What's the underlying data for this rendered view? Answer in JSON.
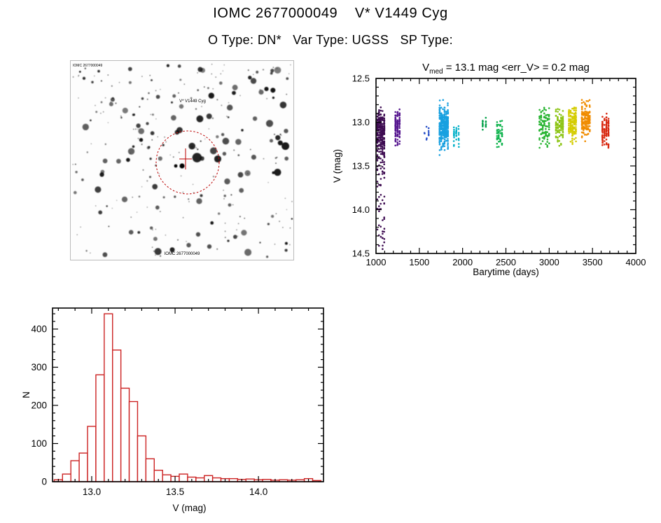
{
  "header": {
    "title": "IOMC 2677000049    V* V1449 Cyg",
    "subtitle": "O Type: DN*   Var Type: UGSS   SP Type:"
  },
  "finder": {
    "top_label": "V* V1449 Cyg",
    "corner_label": "IOMC 2677000049",
    "bottom_label": "IOMC 2677000049",
    "marker_color": "#bb0000",
    "bottom_label_color": "#4444bb",
    "seed": 1337,
    "star_count": 290
  },
  "chart_data": [
    {
      "id": "lightcurve",
      "type": "scatter",
      "title": {
        "prefix": "V",
        "sub": "med",
        "rest": " = 13.1 mag <err_V> = 0.2 mag"
      },
      "xlabel": "Barytime (days)",
      "ylabel": "V (mag)",
      "xlim": [
        1000,
        4000
      ],
      "ylim": [
        12.5,
        14.5
      ],
      "y_inverted": true,
      "grid": false,
      "xticks": [
        "1000",
        "1500",
        "2000",
        "2500",
        "3000",
        "3500",
        "4000"
      ],
      "yticks": [
        "12.5",
        "13.0",
        "13.5",
        "14.0",
        "14.5"
      ],
      "x_minor_step": 100,
      "y_minor_step": 0.1,
      "clusters": [
        {
          "x0": 1015,
          "x1": 1095,
          "v_med": 13.12,
          "v_sigma": 0.14,
          "v_min": 12.82,
          "v_max": 13.55,
          "n": 240,
          "color": "#3c0a50",
          "tail": {
            "n": 60,
            "v_min": 13.4,
            "v_max": 14.45
          }
        },
        {
          "x0": 1225,
          "x1": 1272,
          "v_med": 13.04,
          "v_sigma": 0.1,
          "v_min": 12.84,
          "v_max": 13.3,
          "n": 120,
          "color": "#54148e"
        },
        {
          "x0": 1560,
          "x1": 1608,
          "v_med": 13.15,
          "v_sigma": 0.08,
          "v_min": 13.02,
          "v_max": 13.3,
          "n": 10,
          "color": "#2850c8"
        },
        {
          "x0": 1735,
          "x1": 1830,
          "v_med": 13.05,
          "v_sigma": 0.12,
          "v_min": 12.74,
          "v_max": 13.38,
          "n": 320,
          "color": "#18a0e0"
        },
        {
          "x0": 1900,
          "x1": 1955,
          "v_med": 13.14,
          "v_sigma": 0.07,
          "v_min": 13.0,
          "v_max": 13.3,
          "n": 30,
          "color": "#00b0c8"
        },
        {
          "x0": 2232,
          "x1": 2268,
          "v_med": 13.0,
          "v_sigma": 0.05,
          "v_min": 12.92,
          "v_max": 13.12,
          "n": 16,
          "color": "#0aa44e"
        },
        {
          "x0": 2398,
          "x1": 2455,
          "v_med": 13.12,
          "v_sigma": 0.09,
          "v_min": 12.95,
          "v_max": 13.32,
          "n": 50,
          "color": "#10b44e"
        },
        {
          "x0": 2888,
          "x1": 2998,
          "v_med": 13.05,
          "v_sigma": 0.11,
          "v_min": 12.8,
          "v_max": 13.32,
          "n": 110,
          "color": "#28b432"
        },
        {
          "x0": 3078,
          "x1": 3158,
          "v_med": 13.04,
          "v_sigma": 0.1,
          "v_min": 12.84,
          "v_max": 13.3,
          "n": 110,
          "color": "#8cc414"
        },
        {
          "x0": 3228,
          "x1": 3308,
          "v_med": 13.0,
          "v_sigma": 0.1,
          "v_min": 12.8,
          "v_max": 13.26,
          "n": 140,
          "color": "#d4cc00"
        },
        {
          "x0": 3378,
          "x1": 3468,
          "v_med": 12.98,
          "v_sigma": 0.1,
          "v_min": 12.74,
          "v_max": 13.24,
          "n": 160,
          "color": "#f08c00"
        },
        {
          "x0": 3615,
          "x1": 3685,
          "v_med": 13.1,
          "v_sigma": 0.09,
          "v_min": 12.9,
          "v_max": 13.34,
          "n": 110,
          "color": "#d82810"
        }
      ]
    },
    {
      "id": "histogram",
      "type": "bar",
      "xlabel": "V (mag)",
      "ylabel": "N",
      "xlim": [
        12.765,
        14.39
      ],
      "ylim": [
        0,
        455
      ],
      "grid": false,
      "xticks": [
        "13.0",
        "13.5",
        "14.0"
      ],
      "yticks": [
        "0",
        "100",
        "200",
        "300",
        "400"
      ],
      "x_minor_step": 0.1,
      "y_minor_step": 20,
      "bin_start": 12.775,
      "bin_width": 0.05,
      "counts": [
        5,
        20,
        55,
        75,
        145,
        280,
        440,
        345,
        245,
        210,
        120,
        60,
        30,
        18,
        14,
        20,
        12,
        10,
        16,
        10,
        8,
        8,
        6,
        7,
        5,
        6,
        4,
        5,
        4,
        5,
        8,
        3
      ],
      "bar_color": "#cc2222"
    }
  ]
}
